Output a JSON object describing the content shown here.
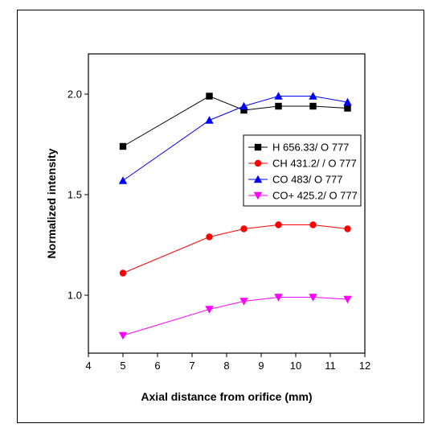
{
  "chart_data": {
    "type": "line",
    "title": "",
    "xlabel": "Axial distance from orifice (mm)",
    "ylabel": "Normalized intensity",
    "xlim": [
      4,
      12
    ],
    "ylim": [
      0.7,
      2.2
    ],
    "xticks": [
      "4",
      "5",
      "6",
      "7",
      "8",
      "9",
      "10",
      "11",
      "12"
    ],
    "yticks": [
      "1.0",
      "1.5",
      "2.0"
    ],
    "grid": false,
    "legend_position": "right",
    "series": [
      {
        "name": "H 656.33/ O 777",
        "color": "#000000",
        "marker": "square",
        "x": [
          5,
          7.5,
          8.5,
          9.5,
          10.5,
          11.5
        ],
        "y": [
          1.74,
          1.99,
          1.92,
          1.94,
          1.94,
          1.93
        ]
      },
      {
        "name": "CH 431.2/ / O 777",
        "color": "#ff0000",
        "marker": "circle",
        "x": [
          5,
          7.5,
          8.5,
          9.5,
          10.5,
          11.5
        ],
        "y": [
          1.11,
          1.29,
          1.33,
          1.35,
          1.35,
          1.33
        ]
      },
      {
        "name": "CO 483/ O 777",
        "color": "#0000ff",
        "marker": "triangle-up",
        "x": [
          5,
          7.5,
          8.5,
          9.5,
          10.5,
          11.5
        ],
        "y": [
          1.57,
          1.87,
          1.94,
          1.99,
          1.99,
          1.96
        ]
      },
      {
        "name": "CO+ 425.2/ O 777",
        "color": "#ff00ff",
        "marker": "triangle-down",
        "x": [
          5,
          7.5,
          8.5,
          9.5,
          10.5,
          11.5
        ],
        "y": [
          0.8,
          0.93,
          0.97,
          0.99,
          0.99,
          0.98
        ]
      }
    ]
  }
}
